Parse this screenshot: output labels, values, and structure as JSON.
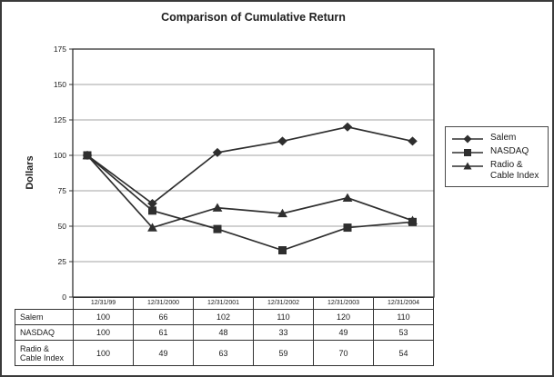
{
  "chart_data": {
    "type": "line",
    "title": "Comparison of Cumulative Return",
    "ylabel": "Dollars",
    "xlabel": "",
    "ylim": [
      0,
      175
    ],
    "y_ticks": [
      175,
      150,
      125,
      100,
      75,
      50,
      25,
      0
    ],
    "grid": true,
    "legend_position": "right",
    "categories": [
      "12/31/99",
      "12/31/2000",
      "12/31/2001",
      "12/31/2002",
      "12/31/2003",
      "12/31/2004"
    ],
    "series": [
      {
        "name": "Salem",
        "marker": "diamond",
        "values": [
          100,
          66,
          102,
          110,
          120,
          110
        ]
      },
      {
        "name": "NASDAQ",
        "marker": "square",
        "values": [
          100,
          61,
          48,
          33,
          49,
          53
        ]
      },
      {
        "name": "Radio & Cable Index",
        "marker": "triangle",
        "values": [
          100,
          49,
          63,
          59,
          70,
          54
        ]
      }
    ],
    "line_color": "#2e2e2e",
    "grid_color": "#a3a3a3",
    "axis_color": "#333333"
  },
  "table": {
    "rows": [
      {
        "label": "Salem",
        "values": [
          "100",
          "66",
          "102",
          "110",
          "120",
          "110"
        ]
      },
      {
        "label": "NASDAQ",
        "values": [
          "100",
          "61",
          "48",
          "33",
          "49",
          "53"
        ]
      },
      {
        "label": "Radio & Cable Index",
        "values": [
          "100",
          "49",
          "63",
          "59",
          "70",
          "54"
        ]
      }
    ]
  }
}
